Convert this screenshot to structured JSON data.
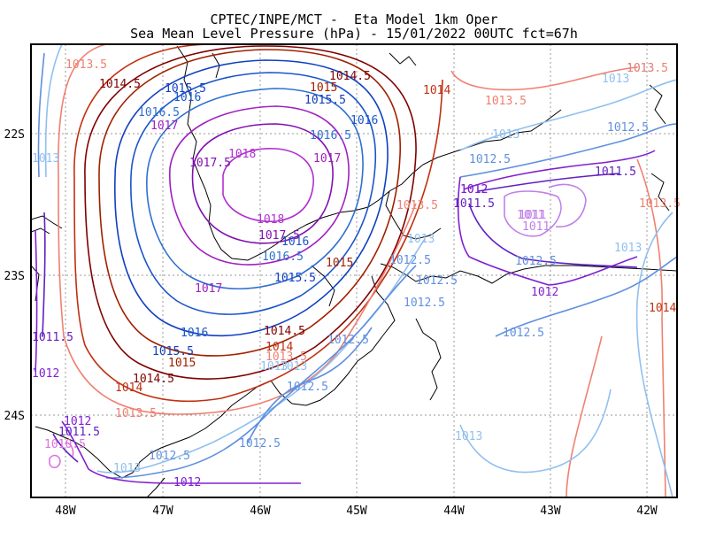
{
  "title_line1": "CPTEC/INPE/MCT -  Eta Model 1km Oper",
  "title_line2": "Sea Mean Level Pressure (hPa) - 15/01/2022 00UTC fct=67h",
  "lat_ticks": [
    "22S",
    "23S",
    "24S"
  ],
  "lon_ticks": [
    "48W",
    "47W",
    "46W",
    "45W",
    "44W",
    "43W",
    "42W"
  ],
  "level_colors": {
    "1010.5": "#e070e0",
    "1011": "#c080e8",
    "1011.5": "#6020c0",
    "1012": "#8020d0",
    "1012.5": "#6090e0",
    "1013": "#90c0f0",
    "1013.5": "#f08070",
    "1014": "#c03010",
    "1014.5": "#800000",
    "1015": "#a02000",
    "1015.5": "#1040c0",
    "1016": "#1a55c8",
    "1016.5": "#3070d0",
    "1017": "#a020c0",
    "1017.5": "#8010b0",
    "1018": "#b030d0"
  },
  "contour_labels": [
    {
      "text": "1013.5",
      "level": "1013.5"
    },
    {
      "text": "1014.5",
      "level": "1014.5"
    },
    {
      "text": "1015.5",
      "level": "1015.5"
    },
    {
      "text": "1016",
      "level": "1016"
    },
    {
      "text": "1016.5",
      "level": "1016.5"
    },
    {
      "text": "1017",
      "level": "1017"
    },
    {
      "text": "1017.5",
      "level": "1017.5"
    },
    {
      "text": "1018",
      "level": "1018"
    },
    {
      "text": "1014.5",
      "level": "1014.5"
    },
    {
      "text": "1015",
      "level": "1015"
    },
    {
      "text": "1015.5",
      "level": "1015.5"
    },
    {
      "text": "1016",
      "level": "1016"
    },
    {
      "text": "1016.5",
      "level": "1016.5"
    },
    {
      "text": "1017",
      "level": "1017"
    },
    {
      "text": "1014",
      "level": "1014"
    },
    {
      "text": "1013.5",
      "level": "1013.5"
    },
    {
      "text": "1013",
      "level": "1013"
    },
    {
      "text": "1012.5",
      "level": "1012.5"
    },
    {
      "text": "1012",
      "level": "1012"
    },
    {
      "text": "1011.5",
      "level": "1011.5"
    },
    {
      "text": "1011",
      "level": "1011"
    },
    {
      "text": "1011",
      "level": "1011"
    },
    {
      "text": "1013.5",
      "level": "1013.5"
    },
    {
      "text": "1013",
      "level": "1013"
    },
    {
      "text": "1018",
      "level": "1018"
    },
    {
      "text": "1017.5",
      "level": "1017.5"
    },
    {
      "text": "1016",
      "level": "1016"
    },
    {
      "text": "1016.5",
      "level": "1016.5"
    },
    {
      "text": "1015.5",
      "level": "1015.5"
    },
    {
      "text": "1015",
      "level": "1015"
    },
    {
      "text": "1017",
      "level": "1017"
    },
    {
      "text": "1016",
      "level": "1016"
    },
    {
      "text": "1015.5",
      "level": "1015.5"
    },
    {
      "text": "1015",
      "level": "1015"
    },
    {
      "text": "1014.5",
      "level": "1014.5"
    },
    {
      "text": "1014",
      "level": "1014"
    },
    {
      "text": "1013.5",
      "level": "1013.5"
    },
    {
      "text": "1013",
      "level": "1013"
    },
    {
      "text": "1012.5",
      "level": "1012.5"
    },
    {
      "text": "1012.5",
      "level": "1012.5"
    },
    {
      "text": "1012.5",
      "level": "1012.5"
    },
    {
      "text": "1012.5",
      "level": "1012.5"
    },
    {
      "text": "1012.5",
      "level": "1012.5"
    },
    {
      "text": "1013",
      "level": "1013"
    },
    {
      "text": "1013.5",
      "level": "1013.5"
    },
    {
      "text": "1014",
      "level": "1014"
    },
    {
      "text": "1014.5",
      "level": "1014.5"
    },
    {
      "text": "1011.5",
      "level": "1011.5"
    },
    {
      "text": "1012",
      "level": "1012"
    },
    {
      "text": "1012",
      "level": "1012"
    },
    {
      "text": "1011.5",
      "level": "1011.5"
    },
    {
      "text": "1010.5",
      "level": "1010.5"
    },
    {
      "text": "1013",
      "level": "1013"
    },
    {
      "text": "1012.5",
      "level": "1012.5"
    },
    {
      "text": "1012",
      "level": "1012"
    },
    {
      "text": "1012.5",
      "level": "1012.5"
    },
    {
      "text": "1013",
      "level": "1013"
    },
    {
      "text": "1012.5",
      "level": "1012.5"
    },
    {
      "text": "1013",
      "level": "1013"
    },
    {
      "text": "1012.5",
      "level": "1012.5"
    },
    {
      "text": "1011.5",
      "level": "1011.5"
    },
    {
      "text": "1012",
      "level": "1012"
    },
    {
      "text": "1012.5",
      "level": "1012.5"
    },
    {
      "text": "1013",
      "level": "1013"
    },
    {
      "text": "1013.5",
      "level": "1013.5"
    },
    {
      "text": "1013",
      "level": "1013"
    },
    {
      "text": "1013.5",
      "level": "1013.5"
    },
    {
      "text": "1014",
      "level": "1014"
    },
    {
      "text": "1013",
      "level": "1013"
    },
    {
      "text": "1011",
      "level": "1011"
    },
    {
      "text": "1012",
      "level": "1012"
    }
  ]
}
